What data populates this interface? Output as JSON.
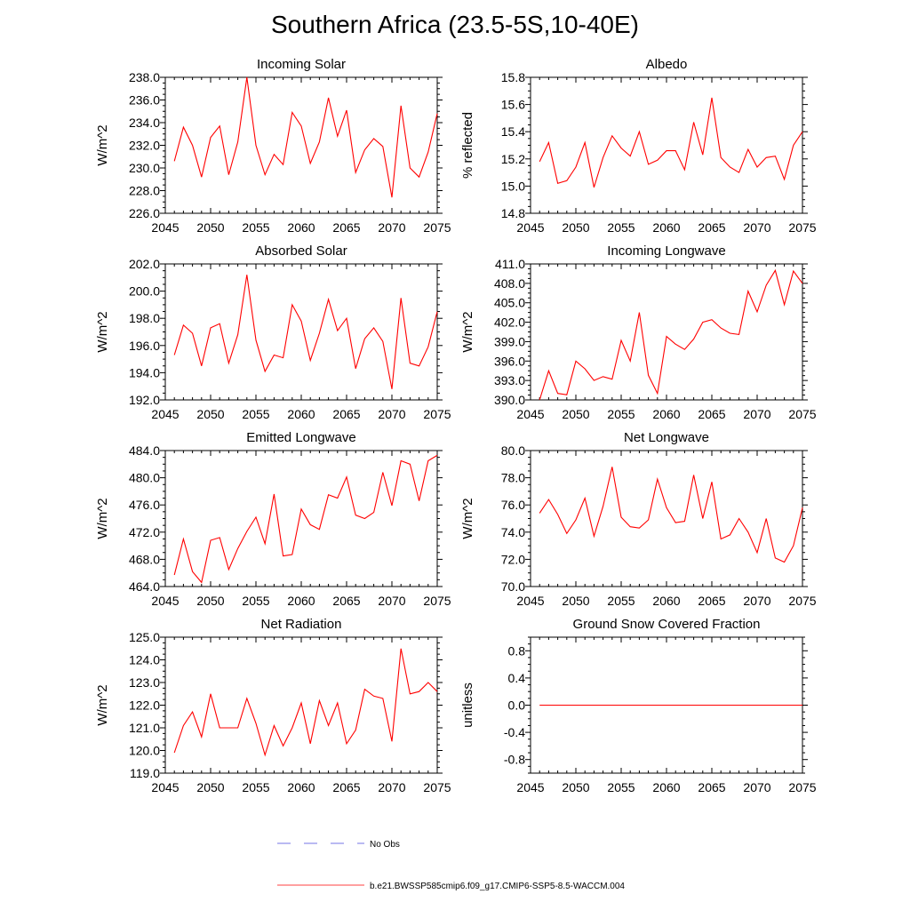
{
  "figure": {
    "title": "Southern Africa (23.5-5S,10-40E)"
  },
  "legend": [
    {
      "label": "No Obs",
      "color": "#4a4adb",
      "style": "dashed"
    },
    {
      "label": "b.e21.BWSSP585cmip6.f09_g17.CMIP6-SSP5-8.5-WACCM.004",
      "color": "#ff0000",
      "style": "solid"
    }
  ],
  "chart_data": [
    {
      "type": "line",
      "title": "Incoming Solar",
      "ylabel": "W/m^2",
      "xlim": [
        2045,
        2075
      ],
      "ylim": [
        226.0,
        238.0
      ],
      "xticks": [
        2045,
        2050,
        2055,
        2060,
        2065,
        2070,
        2075
      ],
      "yticks": [
        226.0,
        228.0,
        230.0,
        232.0,
        234.0,
        236.0,
        238.0
      ],
      "ytick_decimals": 1,
      "color": "#ff0000",
      "x": [
        2046,
        2047,
        2048,
        2049,
        2050,
        2051,
        2052,
        2053,
        2054,
        2055,
        2056,
        2057,
        2058,
        2059,
        2060,
        2061,
        2062,
        2063,
        2064,
        2065,
        2066,
        2067,
        2068,
        2069,
        2070,
        2071,
        2072,
        2073,
        2074,
        2075
      ],
      "y": [
        230.6,
        233.6,
        232.0,
        229.2,
        232.7,
        233.7,
        229.4,
        232.3,
        238.0,
        232.0,
        229.4,
        231.2,
        230.3,
        234.9,
        233.7,
        230.4,
        232.3,
        236.2,
        232.8,
        235.1,
        229.6,
        231.6,
        232.6,
        231.9,
        227.4,
        235.5,
        230.0,
        229.2,
        231.4,
        234.8
      ]
    },
    {
      "type": "line",
      "title": "Albedo",
      "ylabel": "% reflected",
      "xlim": [
        2045,
        2075
      ],
      "ylim": [
        14.8,
        15.8
      ],
      "xticks": [
        2045,
        2050,
        2055,
        2060,
        2065,
        2070,
        2075
      ],
      "yticks": [
        14.8,
        15.0,
        15.2,
        15.4,
        15.6,
        15.8
      ],
      "ytick_decimals": 1,
      "color": "#ff0000",
      "x": [
        2046,
        2047,
        2048,
        2049,
        2050,
        2051,
        2052,
        2053,
        2054,
        2055,
        2056,
        2057,
        2058,
        2059,
        2060,
        2061,
        2062,
        2063,
        2064,
        2065,
        2066,
        2067,
        2068,
        2069,
        2070,
        2071,
        2072,
        2073,
        2074,
        2075
      ],
      "y": [
        15.18,
        15.32,
        15.02,
        15.04,
        15.14,
        15.32,
        14.99,
        15.21,
        15.37,
        15.28,
        15.22,
        15.4,
        15.16,
        15.19,
        15.26,
        15.26,
        15.12,
        15.47,
        15.23,
        15.65,
        15.21,
        15.14,
        15.1,
        15.27,
        15.14,
        15.21,
        15.22,
        15.05,
        15.3,
        15.4
      ]
    },
    {
      "type": "line",
      "title": "Absorbed Solar",
      "ylabel": "W/m^2",
      "xlim": [
        2045,
        2075
      ],
      "ylim": [
        192.0,
        202.0
      ],
      "xticks": [
        2045,
        2050,
        2055,
        2060,
        2065,
        2070,
        2075
      ],
      "yticks": [
        192.0,
        194.0,
        196.0,
        198.0,
        200.0,
        202.0
      ],
      "ytick_decimals": 1,
      "color": "#ff0000",
      "x": [
        2046,
        2047,
        2048,
        2049,
        2050,
        2051,
        2052,
        2053,
        2054,
        2055,
        2056,
        2057,
        2058,
        2059,
        2060,
        2061,
        2062,
        2063,
        2064,
        2065,
        2066,
        2067,
        2068,
        2069,
        2070,
        2071,
        2072,
        2073,
        2074,
        2075
      ],
      "y": [
        195.3,
        197.5,
        196.9,
        194.5,
        197.3,
        197.6,
        194.7,
        196.8,
        201.2,
        196.4,
        194.1,
        195.3,
        195.1,
        199.0,
        197.8,
        194.9,
        196.9,
        199.4,
        197.1,
        198.0,
        194.3,
        196.5,
        197.3,
        196.3,
        192.8,
        199.5,
        194.7,
        194.5,
        195.9,
        198.5
      ]
    },
    {
      "type": "line",
      "title": "Incoming Longwave",
      "ylabel": "W/m^2",
      "xlim": [
        2045,
        2075
      ],
      "ylim": [
        390.0,
        411.0
      ],
      "xticks": [
        2045,
        2050,
        2055,
        2060,
        2065,
        2070,
        2075
      ],
      "yticks": [
        390.0,
        393.0,
        396.0,
        399.0,
        402.0,
        405.0,
        408.0,
        411.0
      ],
      "ytick_decimals": 1,
      "color": "#ff0000",
      "x": [
        2046,
        2047,
        2048,
        2049,
        2050,
        2051,
        2052,
        2053,
        2054,
        2055,
        2056,
        2057,
        2058,
        2059,
        2060,
        2061,
        2062,
        2063,
        2064,
        2065,
        2066,
        2067,
        2068,
        2069,
        2070,
        2071,
        2072,
        2073,
        2074,
        2075
      ],
      "y": [
        390.0,
        394.5,
        391.0,
        390.8,
        396.0,
        394.8,
        393.0,
        393.6,
        393.2,
        399.2,
        396.0,
        403.5,
        393.8,
        391.0,
        399.8,
        398.6,
        397.8,
        399.4,
        402.0,
        402.4,
        401.1,
        400.3,
        400.1,
        406.8,
        403.6,
        407.7,
        410.0,
        404.7,
        409.9,
        408.0
      ]
    },
    {
      "type": "line",
      "title": "Emitted Longwave",
      "ylabel": "W/m^2",
      "xlim": [
        2045,
        2075
      ],
      "ylim": [
        464.0,
        484.0
      ],
      "xticks": [
        2045,
        2050,
        2055,
        2060,
        2065,
        2070,
        2075
      ],
      "yticks": [
        464.0,
        468.0,
        472.0,
        476.0,
        480.0,
        484.0
      ],
      "ytick_decimals": 1,
      "color": "#ff0000",
      "x": [
        2046,
        2047,
        2048,
        2049,
        2050,
        2051,
        2052,
        2053,
        2054,
        2055,
        2056,
        2057,
        2058,
        2059,
        2060,
        2061,
        2062,
        2063,
        2064,
        2065,
        2066,
        2067,
        2068,
        2069,
        2070,
        2071,
        2072,
        2073,
        2074,
        2075
      ],
      "y": [
        465.7,
        471.0,
        466.2,
        464.6,
        470.8,
        471.2,
        466.5,
        469.6,
        472.1,
        474.2,
        470.3,
        477.6,
        468.5,
        468.7,
        475.4,
        473.1,
        472.4,
        477.5,
        477.0,
        480.1,
        474.5,
        474.0,
        474.9,
        480.8,
        475.9,
        482.5,
        482.0,
        476.6,
        482.5,
        483.3
      ]
    },
    {
      "type": "line",
      "title": "Net Longwave",
      "ylabel": "W/m^2",
      "xlim": [
        2045,
        2075
      ],
      "ylim": [
        70.0,
        80.0
      ],
      "xticks": [
        2045,
        2050,
        2055,
        2060,
        2065,
        2070,
        2075
      ],
      "yticks": [
        70.0,
        72.0,
        74.0,
        76.0,
        78.0,
        80.0
      ],
      "ytick_decimals": 1,
      "color": "#ff0000",
      "x": [
        2046,
        2047,
        2048,
        2049,
        2050,
        2051,
        2052,
        2053,
        2054,
        2055,
        2056,
        2057,
        2058,
        2059,
        2060,
        2061,
        2062,
        2063,
        2064,
        2065,
        2066,
        2067,
        2068,
        2069,
        2070,
        2071,
        2072,
        2073,
        2074,
        2075
      ],
      "y": [
        75.4,
        76.4,
        75.3,
        73.9,
        74.9,
        76.5,
        73.7,
        75.9,
        78.8,
        75.1,
        74.4,
        74.3,
        74.9,
        77.9,
        75.8,
        74.7,
        74.8,
        78.2,
        75.0,
        77.7,
        73.5,
        73.8,
        75.0,
        74.0,
        72.5,
        75.0,
        72.1,
        71.8,
        73.0,
        75.8
      ]
    },
    {
      "type": "line",
      "title": "Net Radiation",
      "ylabel": "W/m^2",
      "xlim": [
        2045,
        2075
      ],
      "ylim": [
        119.0,
        125.0
      ],
      "xticks": [
        2045,
        2050,
        2055,
        2060,
        2065,
        2070,
        2075
      ],
      "yticks": [
        119.0,
        120.0,
        121.0,
        122.0,
        123.0,
        124.0,
        125.0
      ],
      "ytick_decimals": 1,
      "color": "#ff0000",
      "x": [
        2046,
        2047,
        2048,
        2049,
        2050,
        2051,
        2052,
        2053,
        2054,
        2055,
        2056,
        2057,
        2058,
        2059,
        2060,
        2061,
        2062,
        2063,
        2064,
        2065,
        2066,
        2067,
        2068,
        2069,
        2070,
        2071,
        2072,
        2073,
        2074,
        2075
      ],
      "y": [
        119.9,
        121.1,
        121.7,
        120.6,
        122.5,
        121.0,
        121.0,
        121.0,
        122.3,
        121.2,
        119.8,
        121.1,
        120.2,
        121.0,
        122.1,
        120.3,
        122.2,
        121.1,
        122.1,
        120.3,
        120.9,
        122.7,
        122.4,
        122.3,
        120.4,
        124.5,
        122.5,
        122.6,
        123.0,
        122.6
      ]
    },
    {
      "type": "line",
      "title": "Ground Snow Covered Fraction",
      "ylabel": "unitless",
      "xlim": [
        2045,
        2075
      ],
      "ylim": [
        -1.0,
        1.0
      ],
      "xticks": [
        2045,
        2050,
        2055,
        2060,
        2065,
        2070,
        2075
      ],
      "yticks": [
        -0.8,
        -0.4,
        0.0,
        0.4,
        0.8
      ],
      "ytick_decimals": 1,
      "color": "#ff0000",
      "x": [
        2046,
        2047,
        2048,
        2049,
        2050,
        2051,
        2052,
        2053,
        2054,
        2055,
        2056,
        2057,
        2058,
        2059,
        2060,
        2061,
        2062,
        2063,
        2064,
        2065,
        2066,
        2067,
        2068,
        2069,
        2070,
        2071,
        2072,
        2073,
        2074,
        2075
      ],
      "y": [
        0,
        0,
        0,
        0,
        0,
        0,
        0,
        0,
        0,
        0,
        0,
        0,
        0,
        0,
        0,
        0,
        0,
        0,
        0,
        0,
        0,
        0,
        0,
        0,
        0,
        0,
        0,
        0,
        0,
        0
      ]
    }
  ]
}
